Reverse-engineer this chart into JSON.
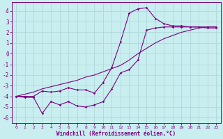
{
  "background_color": "#c8eef0",
  "grid_color": "#b0d8da",
  "line_color": "#7b0080",
  "xlabel": "Windchill (Refroidissement éolien,°C)",
  "xlim": [
    -0.5,
    23.5
  ],
  "ylim": [
    -6.5,
    4.8
  ],
  "yticks": [
    -6,
    -5,
    -4,
    -3,
    -2,
    -1,
    0,
    1,
    2,
    3,
    4
  ],
  "xticks": [
    0,
    1,
    2,
    3,
    4,
    5,
    6,
    7,
    8,
    9,
    10,
    11,
    12,
    13,
    14,
    15,
    16,
    17,
    18,
    19,
    20,
    21,
    22,
    23
  ],
  "series_smooth_x": [
    0,
    1,
    2,
    3,
    4,
    5,
    6,
    7,
    8,
    9,
    10,
    11,
    12,
    13,
    14,
    15,
    16,
    17,
    18,
    19,
    20,
    21,
    22,
    23
  ],
  "series_smooth_y": [
    -4.0,
    -3.8,
    -3.6,
    -3.3,
    -3.1,
    -2.9,
    -2.7,
    -2.5,
    -2.2,
    -2.0,
    -1.7,
    -1.4,
    -1.1,
    -0.6,
    0.0,
    0.5,
    1.0,
    1.4,
    1.7,
    2.0,
    2.2,
    2.4,
    2.5,
    2.5
  ],
  "series_peak_x": [
    0,
    1,
    2,
    3,
    4,
    5,
    6,
    7,
    8,
    9,
    10,
    11,
    12,
    13,
    14,
    15,
    16,
    17,
    18,
    19,
    20,
    21,
    22,
    23
  ],
  "series_peak_y": [
    -4.0,
    -4.0,
    -4.0,
    -3.5,
    -3.6,
    -3.5,
    -3.2,
    -3.4,
    -3.4,
    -3.7,
    -2.7,
    -1.3,
    1.1,
    3.8,
    4.2,
    4.3,
    3.3,
    2.8,
    2.6,
    2.6,
    2.5,
    2.5,
    2.4,
    2.4
  ],
  "series_low_x": [
    0,
    1,
    2,
    3,
    4,
    5,
    6,
    7,
    8,
    9,
    10,
    11,
    12,
    13,
    14,
    15,
    16,
    17,
    18,
    19,
    20,
    21,
    22,
    23
  ],
  "series_low_y": [
    -4.0,
    -4.1,
    -4.1,
    -5.6,
    -4.5,
    -4.8,
    -4.5,
    -4.9,
    -5.0,
    -4.8,
    -4.5,
    -3.3,
    -1.8,
    -1.5,
    -0.6,
    2.2,
    2.4,
    2.5,
    2.5,
    2.5,
    2.5,
    2.5,
    2.5,
    2.5
  ]
}
